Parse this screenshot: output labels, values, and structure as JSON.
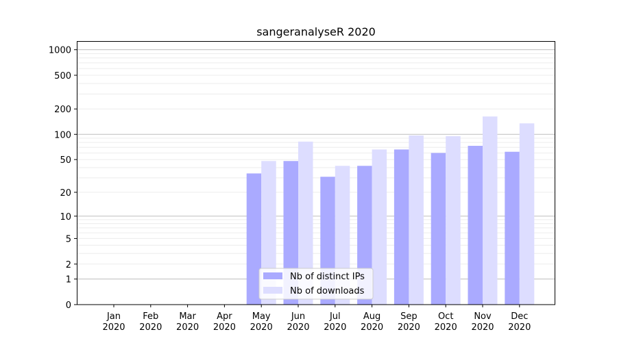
{
  "chart_data": {
    "type": "bar",
    "title": "sangeranalyseR 2020",
    "xlabel": "",
    "ylabel": "",
    "yscale": "symlog (log10(1+y))",
    "ylim": [
      0,
      1200
    ],
    "yticks": [
      0,
      1,
      2,
      5,
      10,
      20,
      50,
      100,
      200,
      500,
      1000
    ],
    "grid": true,
    "legend_position": "bottom-center",
    "categories": [
      "Jan\n2020",
      "Feb\n2020",
      "Mar\n2020",
      "Apr\n2020",
      "May\n2020",
      "Jun\n2020",
      "Jul\n2020",
      "Aug\n2020",
      "Sep\n2020",
      "Oct\n2020",
      "Nov\n2020",
      "Dec\n2020"
    ],
    "series": [
      {
        "name": "Nb of distinct IPs",
        "color": "#aaaaff",
        "values": [
          0,
          0,
          0,
          0,
          34,
          48,
          31,
          42,
          66,
          60,
          73,
          62
        ]
      },
      {
        "name": "Nb of downloads",
        "color": "#ddddff",
        "values": [
          0,
          0,
          0,
          0,
          48,
          82,
          42,
          66,
          97,
          95,
          163,
          135
        ]
      }
    ]
  }
}
